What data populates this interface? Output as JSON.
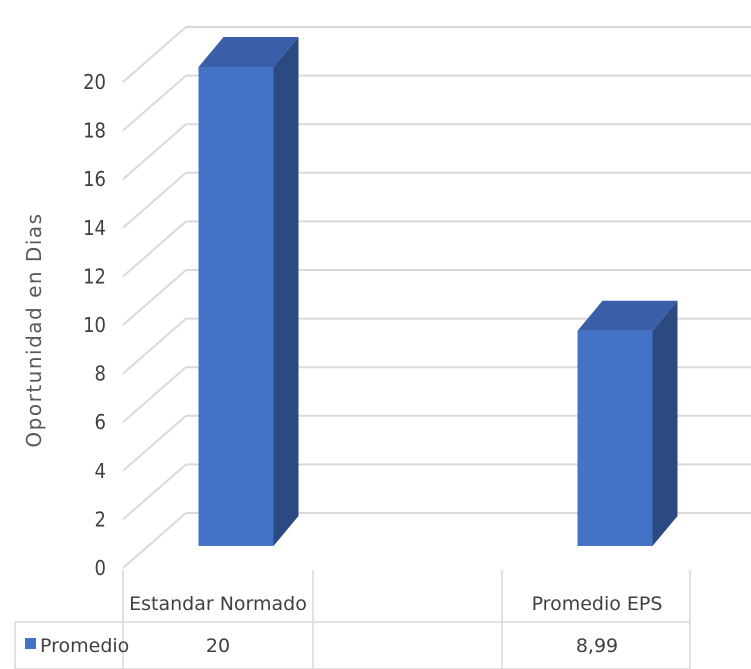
{
  "chart_data": {
    "type": "bar",
    "style": "3d-column",
    "categories": [
      "Estandar Normado",
      "Promedio EPS"
    ],
    "series": [
      {
        "name": "Promedio",
        "values": [
          20,
          8.99
        ],
        "value_labels": [
          "20",
          "8,99"
        ]
      }
    ],
    "ylabel": "Oportunidad en Dias",
    "ylim": [
      0,
      20
    ],
    "yticks": [
      0,
      2,
      4,
      6,
      8,
      10,
      12,
      14,
      16,
      18,
      20
    ],
    "grid": true,
    "data_table": true,
    "colors": {
      "bar_front": "#4472c4",
      "bar_side": "#2b4a81",
      "bar_top": "#3a5fa8",
      "grid": "#d9d9d9"
    }
  }
}
